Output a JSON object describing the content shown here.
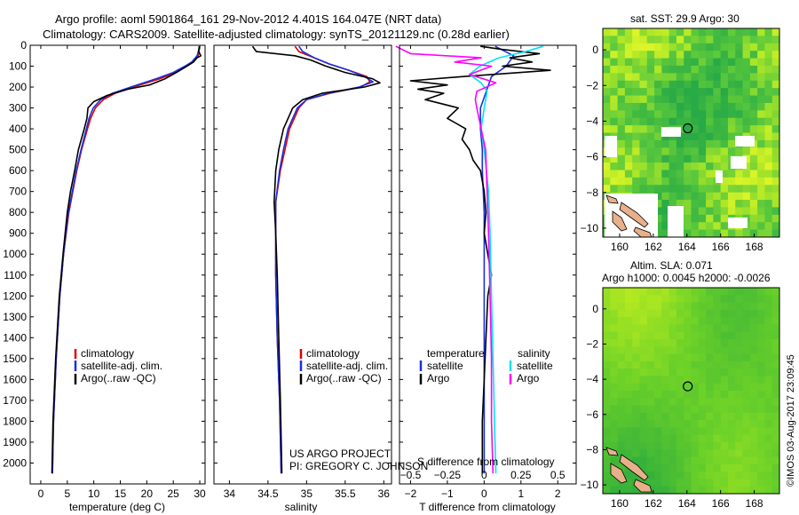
{
  "header": {
    "title_line1": "Argo profile: aoml 5901864_161 29-Nov-2012 4.401S 164.047E (NRT data)",
    "title_line2": "Climatology: CARS2009. Satellite-adjusted climatology: synTS_20121129.nc (0.28d earlier)"
  },
  "credits": {
    "project": "US ARGO PROJECT",
    "pi": "PI: GREGORY C. JOHNSON",
    "stamp": "©IMOS 03-Aug-2017 23:09:45"
  },
  "colors": {
    "climatology": "#dd0000",
    "satellite": "#1a2fe0",
    "argo": "#000000",
    "salinity_satellite": "#00e5ee",
    "salinity_argo": "#ff00ff",
    "map_land": "#e8b08a"
  },
  "chart_data": [
    {
      "type": "line",
      "name": "temperature-profile",
      "xlabel": "temperature (deg C)",
      "ylabel": "",
      "xlim": [
        -2,
        31
      ],
      "ylim": [
        2100,
        0
      ],
      "xticks": [
        0,
        5,
        10,
        15,
        20,
        25,
        30
      ],
      "yticks": [
        0,
        100,
        200,
        300,
        400,
        500,
        600,
        700,
        800,
        900,
        1000,
        1100,
        1200,
        1300,
        1400,
        1500,
        1600,
        1700,
        1800,
        1900,
        2000
      ],
      "legend": [
        "climatology",
        "satellite-adj. clim.",
        "Argo(..raw -QC)"
      ],
      "legend_position": "lower-center",
      "series": [
        {
          "name": "climatology",
          "color": "#dd0000",
          "depth": [
            5,
            50,
            80,
            100,
            130,
            160,
            200,
            230,
            260,
            300,
            350,
            400,
            500,
            600,
            800,
            1000,
            1200,
            1500,
            1800,
            2050
          ],
          "values": [
            30.0,
            29.7,
            28.8,
            27.5,
            25.5,
            22.5,
            17.5,
            14.0,
            11.8,
            10.3,
            9.4,
            8.8,
            7.7,
            6.8,
            5.3,
            4.3,
            3.6,
            2.9,
            2.4,
            2.2
          ]
        },
        {
          "name": "satellite-adj. clim.",
          "color": "#1a2fe0",
          "depth": [
            5,
            50,
            80,
            100,
            130,
            160,
            200,
            230,
            260,
            300,
            350,
            400,
            500,
            600,
            800,
            1000,
            1200,
            1500,
            1800,
            2050
          ],
          "values": [
            30.0,
            29.5,
            28.5,
            27.2,
            25.0,
            21.8,
            17.0,
            13.5,
            11.3,
            9.9,
            9.1,
            8.6,
            7.6,
            6.7,
            5.2,
            4.3,
            3.6,
            2.9,
            2.4,
            2.2
          ]
        },
        {
          "name": "Argo(..raw -QC)",
          "color": "#000000",
          "depth": [
            5,
            30,
            50,
            60,
            80,
            100,
            130,
            160,
            190,
            210,
            240,
            270,
            300,
            350,
            400,
            500,
            600,
            700,
            800,
            1000,
            1200,
            1500,
            1800,
            2050
          ],
          "values": [
            29.9,
            29.8,
            30.2,
            29.5,
            28.8,
            27.6,
            25.6,
            23.5,
            20.5,
            16.5,
            12.5,
            10.0,
            8.9,
            8.7,
            8.2,
            7.1,
            6.4,
            5.6,
            5.0,
            4.2,
            3.5,
            2.8,
            2.3,
            2.1
          ]
        }
      ]
    },
    {
      "type": "line",
      "name": "salinity-profile",
      "xlabel": "salinity",
      "ylabel": "",
      "xlim": [
        33.8,
        36.1
      ],
      "ylim": [
        2100,
        0
      ],
      "xticks": [
        34,
        34.5,
        35,
        35.5,
        36
      ],
      "legend": [
        "climatology",
        "satellite-adj. clim.",
        "Argo(..raw -QC)"
      ],
      "legend_position": "lower-right",
      "series": [
        {
          "name": "climatology",
          "color": "#dd0000",
          "depth": [
            5,
            30,
            60,
            90,
            120,
            150,
            175,
            200,
            230,
            260,
            300,
            400,
            500,
            600,
            750,
            900,
            1100,
            1400,
            1700,
            2050
          ],
          "values": [
            34.85,
            34.9,
            35.1,
            35.3,
            35.55,
            35.78,
            35.82,
            35.7,
            35.3,
            35.0,
            34.9,
            34.78,
            34.72,
            34.66,
            34.6,
            34.6,
            34.6,
            34.62,
            34.65,
            34.67
          ]
        },
        {
          "name": "satellite-adj. clim.",
          "color": "#1a2fe0",
          "depth": [
            5,
            30,
            60,
            90,
            120,
            150,
            175,
            200,
            230,
            260,
            300,
            400,
            500,
            600,
            750,
            900,
            1100,
            1400,
            1700,
            2050
          ],
          "values": [
            34.9,
            34.95,
            35.1,
            35.3,
            35.55,
            35.75,
            35.86,
            35.68,
            35.28,
            35.0,
            34.88,
            34.76,
            34.7,
            34.65,
            34.6,
            34.6,
            34.6,
            34.62,
            34.65,
            34.67
          ]
        },
        {
          "name": "Argo(..raw -QC)",
          "color": "#000000",
          "depth": [
            5,
            30,
            50,
            70,
            100,
            130,
            160,
            180,
            200,
            230,
            260,
            300,
            400,
            500,
            600,
            750,
            900,
            1100,
            1400,
            1700,
            2050
          ],
          "values": [
            34.3,
            34.35,
            34.85,
            35.05,
            35.25,
            35.5,
            35.85,
            35.95,
            35.75,
            35.2,
            34.95,
            34.82,
            34.7,
            34.64,
            34.6,
            34.58,
            34.6,
            34.62,
            34.64,
            34.66,
            34.68
          ]
        }
      ]
    },
    {
      "type": "line",
      "name": "difference-profile",
      "xlabel": "T difference from climatology",
      "xlabel_top": "S difference from climatology",
      "ylabel": "",
      "xlim": [
        -2.3,
        2.5
      ],
      "ylim": [
        2100,
        0
      ],
      "xticks_t": [
        -2,
        -1,
        0,
        1,
        2
      ],
      "xticks_s": [
        -0.5,
        -0.25,
        0,
        0.25,
        0.5
      ],
      "legend_temperature_title": "temperature",
      "legend_salinity_title": "salinity",
      "legend_temperature": [
        "satellite",
        "Argo"
      ],
      "legend_salinity": [
        "satellite",
        "Argo"
      ],
      "series": [
        {
          "name": "T satellite",
          "color": "#1a2fe0",
          "depth": [
            5,
            50,
            100,
            150,
            200,
            300,
            400,
            500,
            600,
            800,
            1000,
            1200,
            1500,
            1800,
            2050
          ],
          "values": [
            0.3,
            0.8,
            0.6,
            0.2,
            0.1,
            -0.1,
            -0.1,
            -0.05,
            -0.05,
            0.0,
            0.0,
            0.0,
            0.0,
            0.0,
            0.0
          ]
        },
        {
          "name": "T Argo",
          "color": "#000000",
          "depth": [
            5,
            20,
            40,
            60,
            80,
            100,
            120,
            150,
            170,
            190,
            210,
            230,
            260,
            300,
            350,
            400,
            450,
            500,
            550,
            600,
            700,
            800,
            900,
            1000,
            1100,
            1200,
            1400,
            1600,
            1800,
            2050
          ],
          "values": [
            -0.1,
            0.5,
            1.5,
            0.7,
            1.3,
            0.5,
            1.8,
            -0.6,
            -2.0,
            -1.0,
            -1.8,
            -1.1,
            -1.6,
            -0.7,
            -1.0,
            -0.5,
            -0.6,
            -0.4,
            -0.3,
            -0.1,
            0.0,
            0.05,
            0.0,
            0.1,
            0.2,
            0.1,
            0.05,
            0.0,
            -0.05,
            -0.05
          ]
        },
        {
          "name": "S satellite",
          "color": "#00e5ee",
          "depth": [
            5,
            30,
            60,
            100,
            140,
            180,
            220,
            300,
            400,
            500,
            700,
            900,
            1200,
            1500,
            1800,
            2050
          ],
          "values": [
            0.4,
            0.28,
            0.1,
            -0.03,
            -0.1,
            -0.02,
            0.02,
            0.0,
            -0.02,
            0.0,
            0.03,
            0.04,
            0.05,
            0.06,
            0.07,
            0.08
          ]
        },
        {
          "name": "S Argo",
          "color": "#ff00ff",
          "depth": [
            5,
            40,
            60,
            80,
            100,
            140,
            180,
            220,
            260,
            300,
            400,
            500,
            700,
            900,
            1200,
            1500,
            1800,
            2050
          ],
          "values": [
            -0.6,
            -0.5,
            -0.02,
            -0.2,
            0.05,
            -0.1,
            0.08,
            -0.05,
            -0.06,
            -0.05,
            -0.02,
            0.01,
            0.02,
            0.03,
            0.04,
            0.05,
            0.05,
            0.06
          ]
        }
      ]
    },
    {
      "type": "heatmap",
      "name": "sst-map",
      "title": "sat. SST: 29.9  Argo: 30",
      "xlim": [
        159,
        169.5
      ],
      "ylim": [
        -10.5,
        1.2
      ],
      "xticks": [
        160,
        162,
        164,
        166,
        168
      ],
      "yticks": [
        0,
        -2,
        -4,
        -6,
        -8,
        -10
      ],
      "profile_location": {
        "lon": 164.047,
        "lat": -4.401
      }
    },
    {
      "type": "heatmap",
      "name": "sla-map",
      "title_line1": "Altim. SLA: 0.071",
      "title_line2": "Argo h1000: 0.0045 h2000: -0.0026",
      "xlim": [
        159,
        169.5
      ],
      "ylim": [
        -10.5,
        1.2
      ],
      "xticks": [
        160,
        162,
        164,
        166,
        168
      ],
      "yticks": [
        0,
        -2,
        -4,
        -6,
        -8,
        -10
      ],
      "profile_location": {
        "lon": 164.047,
        "lat": -4.401
      }
    }
  ]
}
